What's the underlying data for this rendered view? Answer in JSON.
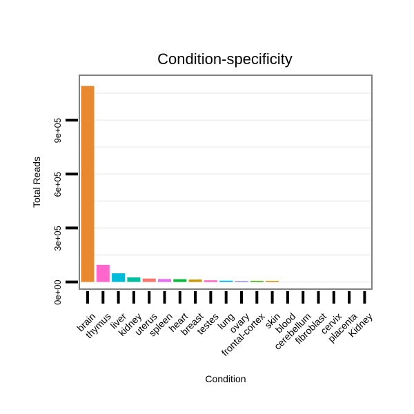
{
  "chart_data": {
    "type": "bar",
    "title": "Condition-specificity",
    "xlabel": "Condition",
    "ylabel": "Total Reads",
    "categories": [
      "brain",
      "thymus",
      "liver",
      "kidney",
      "uterus",
      "spleen",
      "heart",
      "breast",
      "testes",
      "lung",
      "ovary",
      "frontal-cortex",
      "skin",
      "blood",
      "cerebellum",
      "fibroblast",
      "cervix",
      "placenta",
      "Kidney"
    ],
    "values": [
      1090000,
      95000,
      48000,
      25000,
      19000,
      16000,
      15000,
      13000,
      9000,
      7000,
      5000,
      4000,
      3000,
      0,
      0,
      0,
      0,
      0,
      0
    ],
    "colors": [
      "#E8892F",
      "#FF66CC",
      "#00BCD8",
      "#00BFA0",
      "#F8766D",
      "#E76BF3",
      "#00BA38",
      "#C99800",
      "#FF61C3",
      "#00B0F6",
      "#9590FF",
      "#39B600",
      "#D89000",
      "#A3A500",
      "#00C08B",
      "#619CFF",
      "#FF62BC",
      "#B79F00",
      "#00BF7D"
    ],
    "yticks": [
      0,
      300000,
      600000,
      900000
    ],
    "ytick_labels": [
      "0e+00",
      "3e+05",
      "6e+05",
      "9e+05"
    ],
    "ylim": [
      -40000,
      1150000
    ],
    "grid": true
  }
}
